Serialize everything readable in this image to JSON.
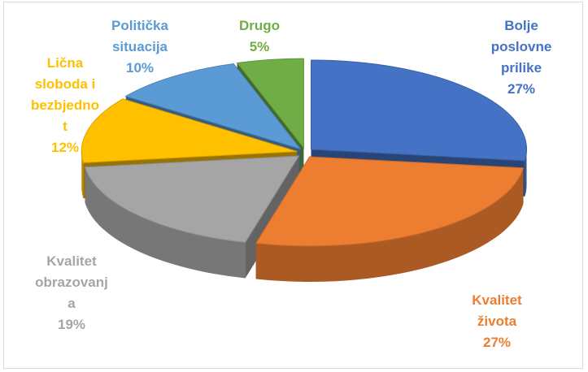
{
  "chart_data": {
    "type": "pie",
    "style": "3d-exploded",
    "title": "",
    "slices": [
      {
        "lines": [
          "Bolje",
          "poslovne",
          "prilike"
        ],
        "percent_label": "27%",
        "value": 27,
        "color": "#4472c4"
      },
      {
        "lines": [
          "Kvalitet",
          "života"
        ],
        "percent_label": "27%",
        "value": 27,
        "color": "#ed7d31"
      },
      {
        "lines": [
          "Kvalitet",
          "obrazovanj",
          "a"
        ],
        "percent_label": "19%",
        "value": 19,
        "color": "#a5a5a5"
      },
      {
        "lines": [
          "Lična",
          "sloboda i",
          "bezbjedno",
          "t"
        ],
        "percent_label": "12%",
        "value": 12,
        "color": "#ffc000"
      },
      {
        "lines": [
          "Politička",
          "situacija"
        ],
        "percent_label": "10%",
        "value": 10,
        "color": "#5b9bd5"
      },
      {
        "lines": [
          "Drugo"
        ],
        "percent_label": "5%",
        "value": 5,
        "color": "#70ad47"
      }
    ]
  }
}
